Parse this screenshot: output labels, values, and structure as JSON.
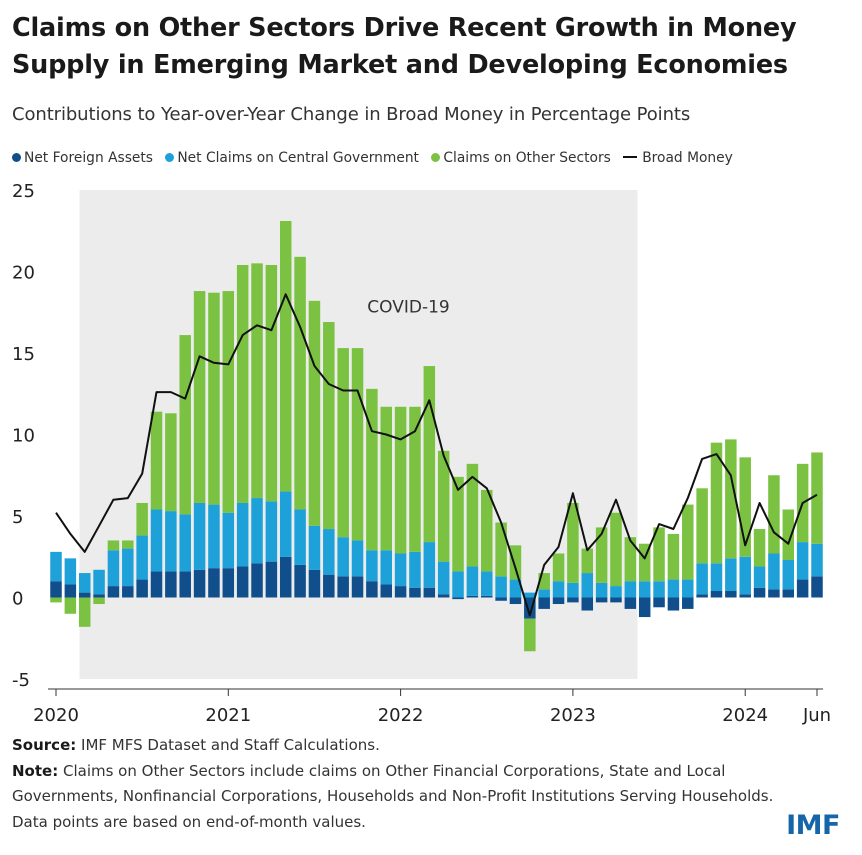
{
  "title": "Claims on Other Sectors Drive Recent Growth in Money Supply in Emerging Market and Developing Economies",
  "subtitle": "Contributions to Year-over-Year Change in Broad Money in Percentage Points",
  "legend": [
    {
      "label": "Net Foreign Assets",
      "color": "#114f8c",
      "kind": "dot"
    },
    {
      "label": "Net Claims on Central Government",
      "color": "#1da1d8",
      "kind": "dot"
    },
    {
      "label": "Claims on Other Sectors",
      "color": "#7cc242",
      "kind": "dot"
    },
    {
      "label": "Broad Money",
      "color": "#111111",
      "kind": "line"
    }
  ],
  "annotation": "COVID-19",
  "source_label": "Source:",
  "source_text": "IMF MFS Dataset and Staff Calculations.",
  "note_label": "Note:",
  "note_text": "Claims on Other Sectors include claims on Other Financial Corporations, State and Local Governments, Nonfinancial Corporations, Households and Non-Profit Institutions Serving Households. Data points are based on end-of-month values.",
  "logo": "IMF",
  "chart_data": {
    "type": "bar",
    "stacked": true,
    "title": "Claims on Other Sectors Drive Recent Growth in Money Supply in Emerging Market and Developing Economies",
    "ylabel": "Contributions to Year-over-Year Change in Broad Money in Percentage Points",
    "ylim": [
      -5,
      25
    ],
    "yticks": [
      -5,
      0,
      5,
      10,
      15,
      20,
      25
    ],
    "x_tick_labels": [
      {
        "label": "2020",
        "index": 0
      },
      {
        "label": "2021",
        "index": 12
      },
      {
        "label": "2022",
        "index": 24
      },
      {
        "label": "2023",
        "index": 36
      },
      {
        "label": "2024",
        "index": 48
      },
      {
        "label": "Jun",
        "index": 53
      }
    ],
    "shaded_region": {
      "label": "COVID-19",
      "start_index": 2,
      "end_index": 40
    },
    "categories": [
      "2020-01",
      "2020-02",
      "2020-03",
      "2020-04",
      "2020-05",
      "2020-06",
      "2020-07",
      "2020-08",
      "2020-09",
      "2020-10",
      "2020-11",
      "2020-12",
      "2021-01",
      "2021-02",
      "2021-03",
      "2021-04",
      "2021-05",
      "2021-06",
      "2021-07",
      "2021-08",
      "2021-09",
      "2021-10",
      "2021-11",
      "2021-12",
      "2022-01",
      "2022-02",
      "2022-03",
      "2022-04",
      "2022-05",
      "2022-06",
      "2022-07",
      "2022-08",
      "2022-09",
      "2022-10",
      "2022-11",
      "2022-12",
      "2023-01",
      "2023-02",
      "2023-03",
      "2023-04",
      "2023-05",
      "2023-06",
      "2023-07",
      "2023-08",
      "2023-09",
      "2023-10",
      "2023-11",
      "2023-12",
      "2024-01",
      "2024-02",
      "2024-03",
      "2024-04",
      "2024-05",
      "2024-06"
    ],
    "series": [
      {
        "name": "Net Foreign Assets",
        "color": "#114f8c",
        "values": [
          1.0,
          0.8,
          0.3,
          0.2,
          0.7,
          0.7,
          1.1,
          1.6,
          1.6,
          1.6,
          1.7,
          1.8,
          1.8,
          1.9,
          2.1,
          2.2,
          2.5,
          2.0,
          1.7,
          1.4,
          1.3,
          1.3,
          1.0,
          0.8,
          0.7,
          0.6,
          0.6,
          0.2,
          -0.1,
          0.1,
          0.1,
          -0.2,
          -0.4,
          -1.3,
          -0.7,
          -0.4,
          -0.3,
          -0.8,
          -0.3,
          -0.3,
          -0.7,
          -1.2,
          -0.6,
          -0.8,
          -0.7,
          0.2,
          0.4,
          0.4,
          0.2,
          0.6,
          0.5,
          0.5,
          1.1,
          1.3
        ]
      },
      {
        "name": "Net Claims on Central Government",
        "color": "#1da1d8",
        "values": [
          1.8,
          1.6,
          1.2,
          1.5,
          2.2,
          2.3,
          2.7,
          3.8,
          3.7,
          3.5,
          4.1,
          3.9,
          3.4,
          3.9,
          4.0,
          3.7,
          4.0,
          3.4,
          2.7,
          2.8,
          2.4,
          2.2,
          1.9,
          2.1,
          2.0,
          2.2,
          2.8,
          2.0,
          1.6,
          1.8,
          1.5,
          1.3,
          1.1,
          0.3,
          0.5,
          1.0,
          0.9,
          1.5,
          0.9,
          0.7,
          1.0,
          1.0,
          1.0,
          1.1,
          1.1,
          1.9,
          1.7,
          2.0,
          2.3,
          1.3,
          2.2,
          1.8,
          2.3,
          2.0
        ]
      },
      {
        "name": "Claims on Other Sectors",
        "color": "#7cc242",
        "values": [
          -0.3,
          -1.0,
          -1.8,
          -0.4,
          0.6,
          0.5,
          2.0,
          6.0,
          6.0,
          11.0,
          13.0,
          13.0,
          13.6,
          14.6,
          14.4,
          14.5,
          16.6,
          15.5,
          13.8,
          12.7,
          11.6,
          11.8,
          9.9,
          8.8,
          9.0,
          8.9,
          10.8,
          6.8,
          5.8,
          6.3,
          5.0,
          3.3,
          2.1,
          -2.0,
          1.0,
          1.7,
          4.9,
          1.5,
          3.4,
          4.5,
          2.7,
          2.3,
          3.3,
          2.8,
          4.6,
          4.6,
          7.4,
          7.3,
          6.1,
          2.3,
          4.8,
          3.1,
          4.8,
          5.6
        ]
      },
      {
        "name": "Broad Money",
        "color": "#111111",
        "type": "line",
        "values": [
          5.2,
          3.9,
          2.8,
          4.4,
          6.0,
          6.1,
          7.6,
          12.6,
          12.6,
          12.2,
          14.8,
          14.4,
          14.3,
          16.1,
          16.7,
          16.4,
          18.6,
          16.6,
          14.2,
          13.1,
          12.7,
          12.7,
          10.2,
          10.0,
          9.7,
          10.2,
          12.1,
          8.7,
          6.6,
          7.4,
          6.7,
          4.6,
          1.8,
          -1.1,
          2.0,
          3.1,
          6.4,
          2.9,
          3.9,
          6.0,
          3.5,
          2.4,
          4.5,
          4.2,
          6.1,
          8.5,
          8.8,
          7.5,
          3.2,
          5.8,
          4.0,
          3.3,
          5.8,
          6.3
        ]
      }
    ]
  }
}
